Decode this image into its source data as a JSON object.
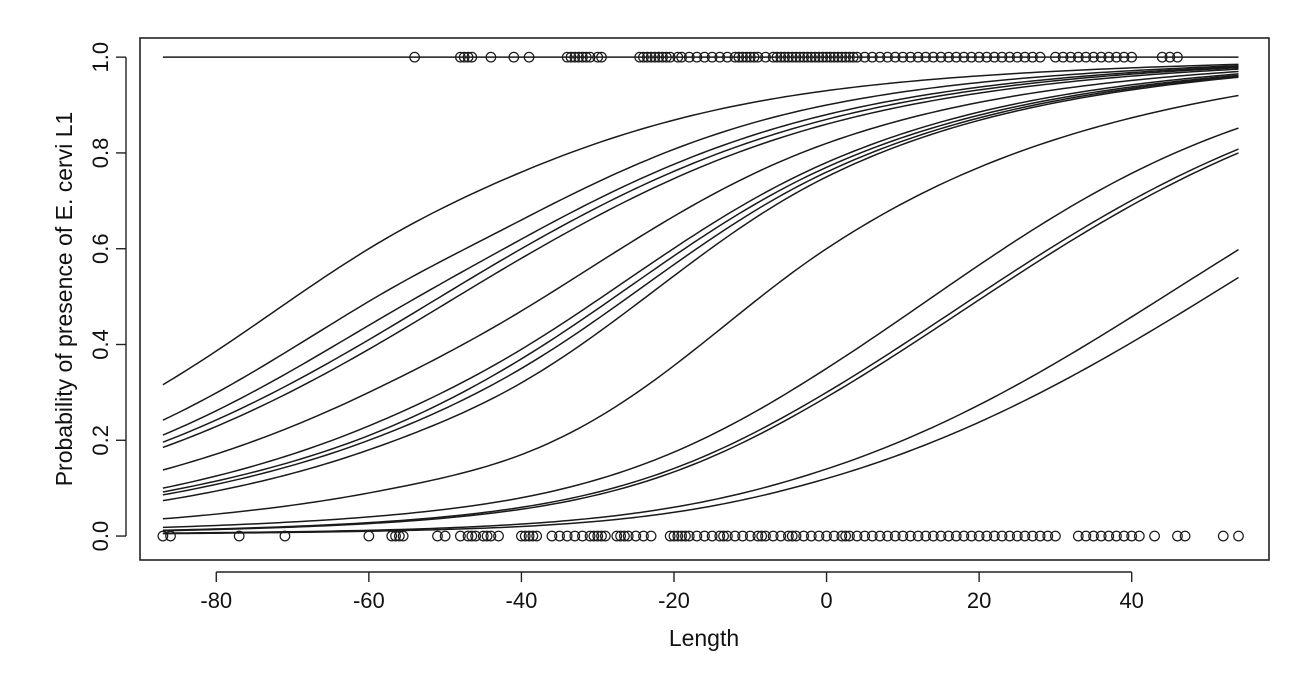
{
  "chart_data": {
    "type": "line",
    "title": "",
    "xlabel": "Length",
    "ylabel": "Probability of presence of E. cervi L1",
    "xlim": [
      -90,
      58
    ],
    "ylim": [
      -0.05,
      1.04
    ],
    "x_ticks": [
      -80,
      -60,
      -40,
      -20,
      0,
      20,
      40
    ],
    "x_tick_labels": [
      "-80",
      "-60",
      "-40",
      "-20",
      "0",
      "20",
      "40"
    ],
    "y_ticks": [
      0.0,
      0.2,
      0.4,
      0.6,
      0.8,
      1.0
    ],
    "y_tick_labels": [
      "0.0",
      "0.2",
      "0.4",
      "0.6",
      "0.8",
      "1.0"
    ],
    "grid": false,
    "colors": {
      "line": "#1a1a1a",
      "axis": "#222222",
      "background": "#ffffff"
    },
    "curve_x_range": [
      -87,
      54
    ],
    "series": [
      {
        "curve_points": [
          [
            -87,
            1.0
          ],
          [
            54,
            1.0
          ]
        ]
      },
      {
        "curve_points": [
          [
            -87,
            0.316
          ],
          [
            -60,
            0.6
          ],
          [
            -40,
            0.76
          ],
          [
            0,
            0.93
          ],
          [
            54,
            0.985
          ]
        ]
      },
      {
        "curve_points": [
          [
            -87,
            0.242
          ],
          [
            -60,
            0.49
          ],
          [
            -40,
            0.66
          ],
          [
            0,
            0.9
          ],
          [
            54,
            0.982
          ]
        ]
      },
      {
        "curve_points": [
          [
            -87,
            0.211
          ],
          [
            -60,
            0.44
          ],
          [
            -40,
            0.62
          ],
          [
            0,
            0.88
          ],
          [
            54,
            0.98
          ]
        ]
      },
      {
        "curve_points": [
          [
            -87,
            0.196
          ],
          [
            -60,
            0.41
          ],
          [
            -40,
            0.6
          ],
          [
            0,
            0.87
          ],
          [
            54,
            0.978
          ]
        ]
      },
      {
        "curve_points": [
          [
            -87,
            0.185
          ],
          [
            -60,
            0.39
          ],
          [
            -40,
            0.58
          ],
          [
            0,
            0.86
          ],
          [
            54,
            0.975
          ]
        ]
      },
      {
        "curve_points": [
          [
            -87,
            0.138
          ],
          [
            -60,
            0.3
          ],
          [
            -40,
            0.47
          ],
          [
            0,
            0.82
          ],
          [
            54,
            0.97
          ]
        ]
      },
      {
        "curve_points": [
          [
            -87,
            0.1
          ],
          [
            -60,
            0.23
          ],
          [
            -40,
            0.39
          ],
          [
            0,
            0.78
          ],
          [
            54,
            0.965
          ]
        ]
      },
      {
        "curve_points": [
          [
            -87,
            0.092
          ],
          [
            -60,
            0.21
          ],
          [
            -40,
            0.37
          ],
          [
            0,
            0.77
          ],
          [
            54,
            0.962
          ]
        ]
      },
      {
        "curve_points": [
          [
            -87,
            0.086
          ],
          [
            -60,
            0.2
          ],
          [
            -40,
            0.35
          ],
          [
            0,
            0.76
          ],
          [
            54,
            0.96
          ]
        ]
      },
      {
        "curve_points": [
          [
            -87,
            0.074
          ],
          [
            -60,
            0.18
          ],
          [
            -40,
            0.32
          ],
          [
            0,
            0.75
          ],
          [
            54,
            0.958
          ]
        ]
      },
      {
        "curve_points": [
          [
            -87,
            0.036
          ],
          [
            -60,
            0.09
          ],
          [
            -40,
            0.17
          ],
          [
            0,
            0.6
          ],
          [
            54,
            0.92
          ]
        ]
      },
      {
        "curve_points": [
          [
            -87,
            0.018
          ],
          [
            -60,
            0.04
          ],
          [
            -40,
            0.08
          ],
          [
            0,
            0.35
          ],
          [
            54,
            0.852
          ]
        ]
      },
      {
        "curve_points": [
          [
            -87,
            0.012
          ],
          [
            -60,
            0.028
          ],
          [
            -40,
            0.06
          ],
          [
            0,
            0.3
          ],
          [
            54,
            0.808
          ]
        ]
      },
      {
        "curve_points": [
          [
            -87,
            0.011
          ],
          [
            -60,
            0.026
          ],
          [
            -40,
            0.056
          ],
          [
            0,
            0.29
          ],
          [
            54,
            0.8
          ]
        ]
      },
      {
        "curve_points": [
          [
            -87,
            0.006
          ],
          [
            -60,
            0.012
          ],
          [
            -40,
            0.025
          ],
          [
            0,
            0.14
          ],
          [
            54,
            0.598
          ]
        ]
      },
      {
        "curve_points": [
          [
            -87,
            0.005
          ],
          [
            -60,
            0.01
          ],
          [
            -40,
            0.02
          ],
          [
            0,
            0.12
          ],
          [
            54,
            0.54
          ]
        ]
      }
    ],
    "observations_y1": [
      -54,
      -48,
      -47.5,
      -47,
      -46.5,
      -44,
      -41,
      -39,
      -34,
      -33.5,
      -33,
      -32.5,
      -32,
      -31.5,
      -31,
      -30,
      -29.5,
      -24.5,
      -24,
      -23.5,
      -23,
      -22.5,
      -22,
      -21.5,
      -21,
      -20.5,
      -19.5,
      -19,
      -18,
      -17,
      -16,
      -15,
      -14,
      -13,
      -12,
      -11.5,
      -11,
      -10.5,
      -10,
      -9.5,
      -9,
      -8,
      -7,
      -6.5,
      -6,
      -5.5,
      -5,
      -4.5,
      -4,
      -3.5,
      -3,
      -2.5,
      -2,
      -1.5,
      -1,
      -0.5,
      0,
      0.5,
      1,
      1.5,
      2,
      2.5,
      3,
      3.5,
      4,
      5,
      6,
      7,
      8,
      9,
      10,
      11,
      12,
      13,
      14,
      15,
      16,
      17,
      18,
      19,
      20,
      21,
      22,
      23,
      24,
      25,
      26,
      27,
      28,
      30,
      31,
      32,
      33,
      34,
      35,
      36,
      37,
      38,
      39,
      40,
      44,
      45,
      46
    ],
    "observations_y0": [
      -87,
      -86,
      -77,
      -71,
      -60,
      -57,
      -56.5,
      -56,
      -55.5,
      -51,
      -50,
      -48,
      -47,
      -46.5,
      -46,
      -45,
      -44.5,
      -44,
      -43,
      -40,
      -39.5,
      -39,
      -38.5,
      -38,
      -36,
      -35,
      -34,
      -33,
      -32,
      -31,
      -30.5,
      -30,
      -29.5,
      -29,
      -27.5,
      -27,
      -26.5,
      -26,
      -25,
      -24,
      -23,
      -20.5,
      -20,
      -19.5,
      -19,
      -18.5,
      -18,
      -17,
      -16,
      -15,
      -14,
      -13.5,
      -13,
      -12,
      -11,
      -10,
      -9,
      -8.5,
      -8,
      -7,
      -6,
      -5,
      -4.5,
      -4,
      -3,
      -2,
      -1,
      0,
      1,
      2,
      2.5,
      3,
      4,
      5,
      6,
      7,
      8,
      9,
      10,
      11,
      12,
      13,
      14,
      15,
      16,
      17,
      18,
      19,
      20,
      21,
      22,
      23,
      24,
      25,
      26,
      27,
      28,
      29,
      30,
      33,
      34,
      35,
      36,
      37,
      38,
      39,
      40,
      41,
      43,
      46,
      47,
      52,
      54
    ]
  }
}
